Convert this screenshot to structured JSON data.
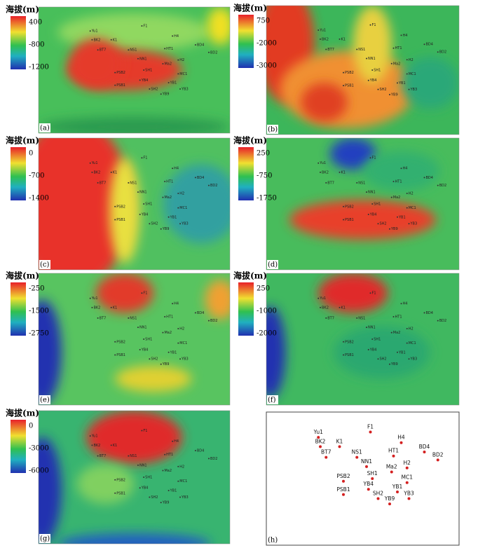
{
  "elevation_label": "海拔(m)",
  "panels": [
    {
      "label": "(a)",
      "ticks": [
        "400",
        "-800",
        "-1200"
      ]
    },
    {
      "label": "(b)",
      "ticks": [
        "750",
        "-2000",
        "-3000"
      ]
    },
    {
      "label": "(c)",
      "ticks": [
        "0",
        "-700",
        "-1400"
      ]
    },
    {
      "label": "(d)",
      "ticks": [
        "250",
        "-750",
        "-1750"
      ]
    },
    {
      "label": "(e)",
      "ticks": [
        "-250",
        "-1500",
        "-2750"
      ]
    },
    {
      "label": "(f)",
      "ticks": [
        "250",
        "-1000",
        "-2000"
      ]
    },
    {
      "label": "(g)",
      "ticks": [
        "0",
        "-3000",
        "-6000"
      ]
    },
    {
      "label": "(h)"
    }
  ],
  "wells": [
    "Yu1",
    "F1",
    "H4",
    "K1",
    "BK2",
    "BD4",
    "HT1",
    "NS1",
    "BD2",
    "BT7",
    "H2",
    "NN1",
    "Ma2",
    "SH1",
    "MC1",
    "PSB2",
    "YB4",
    "YB1",
    "SH2",
    "YB3",
    "PSB1",
    "YB9"
  ]
}
